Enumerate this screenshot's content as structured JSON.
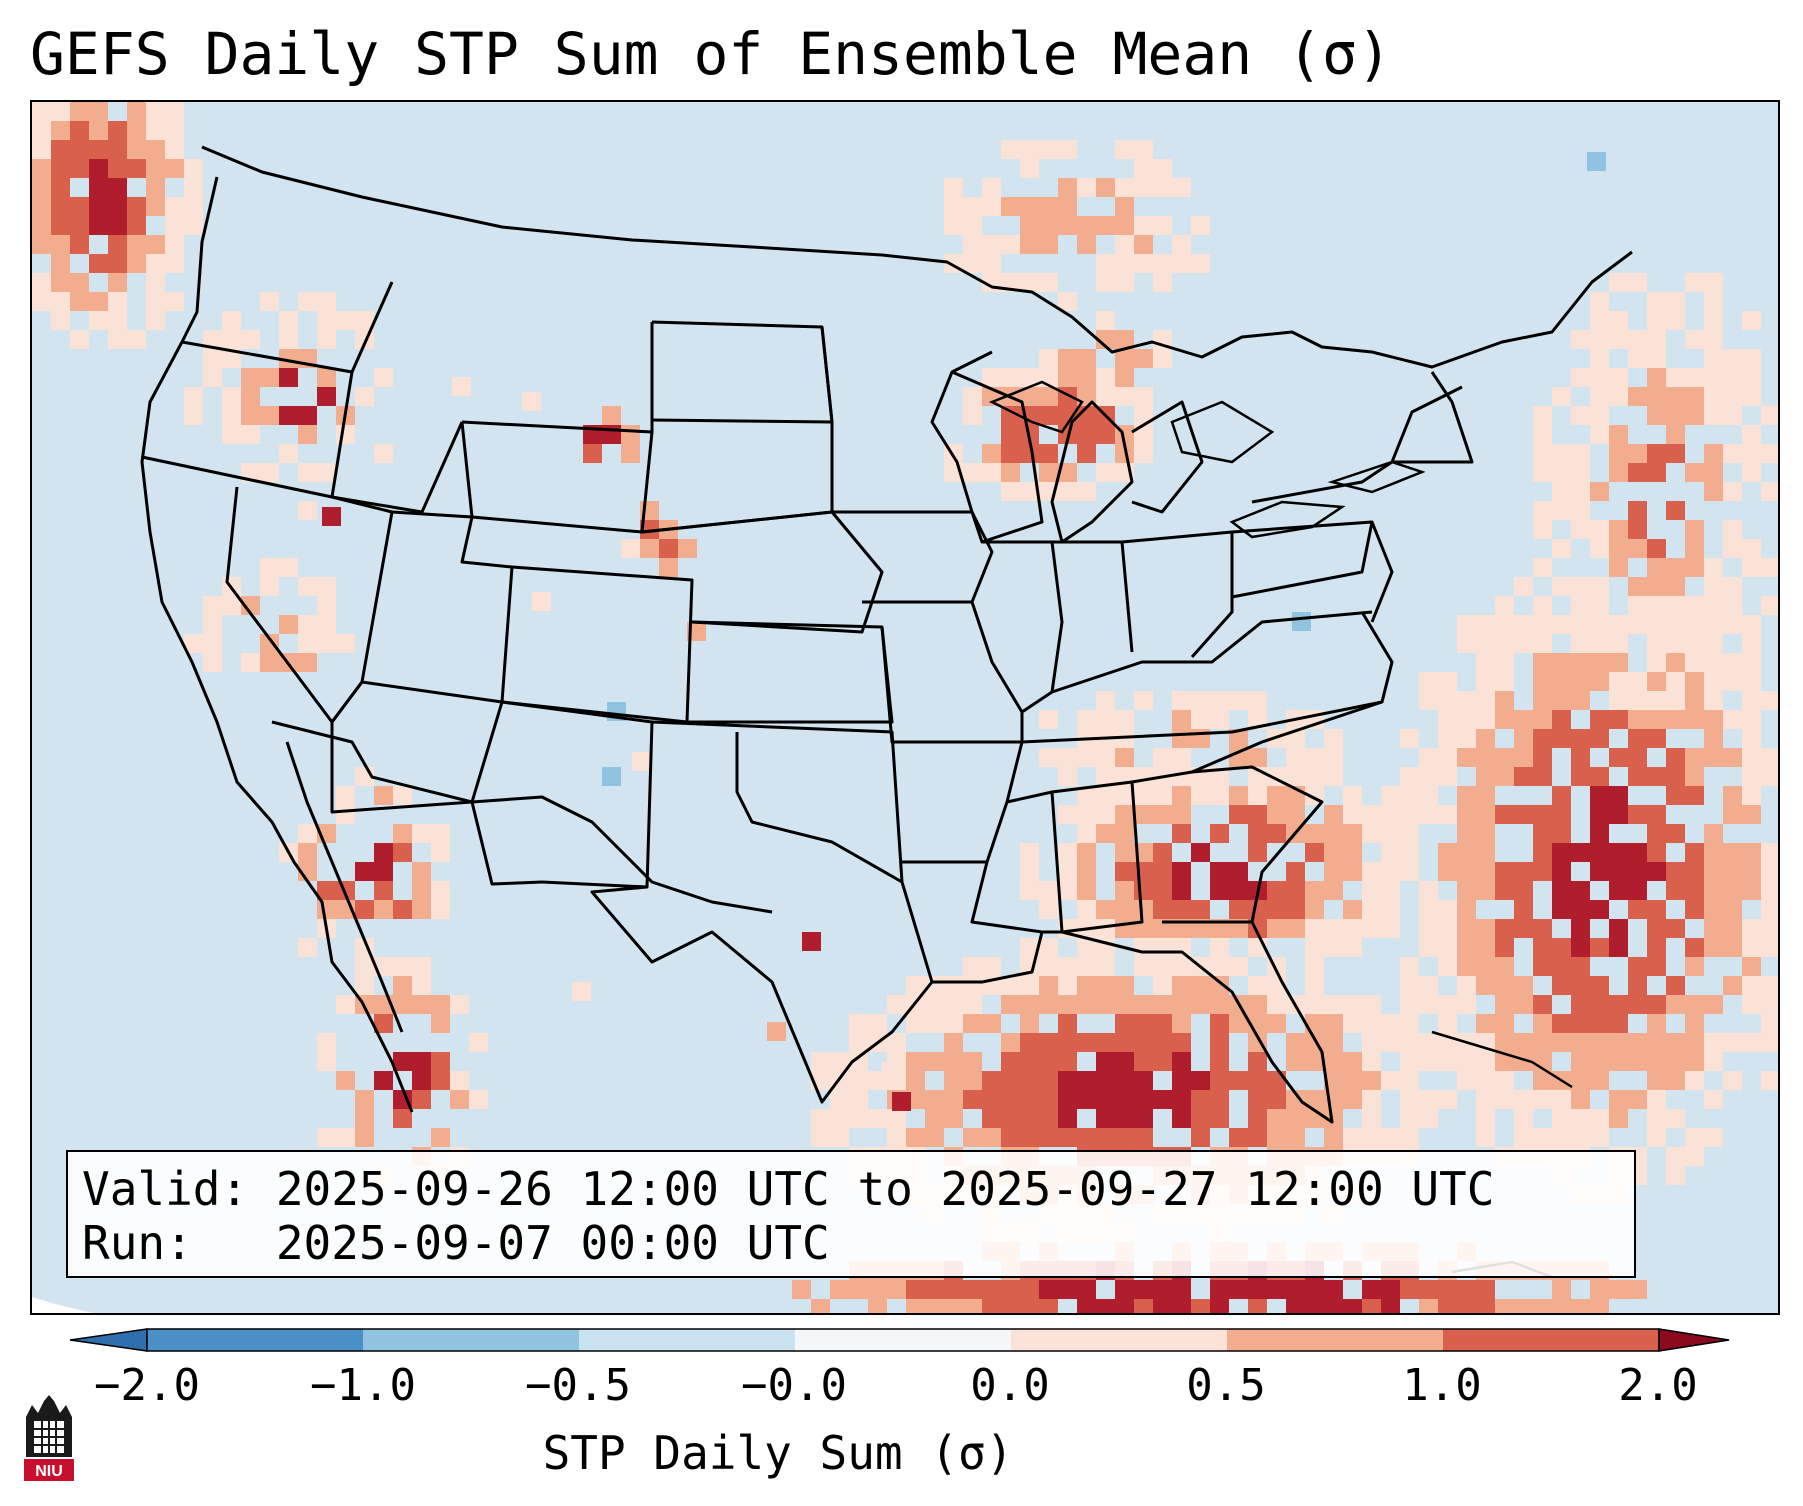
{
  "title": "GEFS Daily STP Sum of Ensemble Mean (σ)",
  "info": {
    "valid_line": "Valid: 2025-09-26 12:00 UTC to 2025-09-27 12:00 UTC",
    "run_line": "Run:   2025-09-07 00:00 UTC"
  },
  "colorbar": {
    "label": "STP Daily Sum (σ)",
    "ticks": [
      "−2.0",
      "−1.0",
      "−0.5",
      "−0.0",
      "0.0",
      "0.5",
      "1.0",
      "2.0"
    ],
    "bin_colors": [
      "#4a8fc6",
      "#8fc3e0",
      "#c9e2ef",
      "#f3f7fa",
      "#fbe2d6",
      "#f2ad8e",
      "#d9604d",
      "#b01d2d"
    ],
    "underflow_color": "#2f6fad",
    "overflow_color": "#8c0a1e"
  },
  "logo": {
    "text": "NIU",
    "icon": "university-logo"
  },
  "map": {
    "projection": "lambert-conformal",
    "region": "CONUS",
    "background_color": "#d1e4ef",
    "outside_color": "#ffffff",
    "state_line_color": "#000000"
  }
}
